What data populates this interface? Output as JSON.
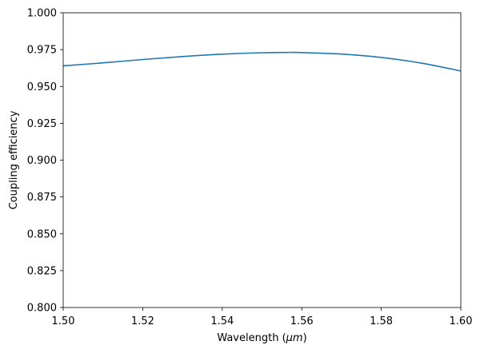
{
  "chart_data": {
    "type": "line",
    "title": "",
    "xlabel": "Wavelength",
    "xlabel_unit": "μm",
    "ylabel": "Coupling efficiency",
    "xlim": [
      1.5,
      1.6
    ],
    "ylim": [
      0.8,
      1.0
    ],
    "xticks": [
      "1.50",
      "1.52",
      "1.54",
      "1.56",
      "1.58",
      "1.60"
    ],
    "xtick_values": [
      1.5,
      1.52,
      1.54,
      1.56,
      1.58,
      1.6
    ],
    "yticks": [
      "0.800",
      "0.825",
      "0.850",
      "0.875",
      "0.900",
      "0.925",
      "0.950",
      "0.975",
      "1.000"
    ],
    "ytick_values": [
      0.8,
      0.825,
      0.85,
      0.875,
      0.9,
      0.925,
      0.95,
      0.975,
      1.0
    ],
    "grid": false,
    "legend": "none",
    "series": [
      {
        "color": "#1f77b4",
        "x": [
          1.5,
          1.51,
          1.52,
          1.53,
          1.54,
          1.55,
          1.557,
          1.56,
          1.57,
          1.58,
          1.59,
          1.6
        ],
        "y": [
          0.964,
          0.966,
          0.9683,
          0.9703,
          0.9719,
          0.9729,
          0.9731,
          0.973,
          0.972,
          0.9697,
          0.9659,
          0.9605
        ]
      }
    ]
  }
}
